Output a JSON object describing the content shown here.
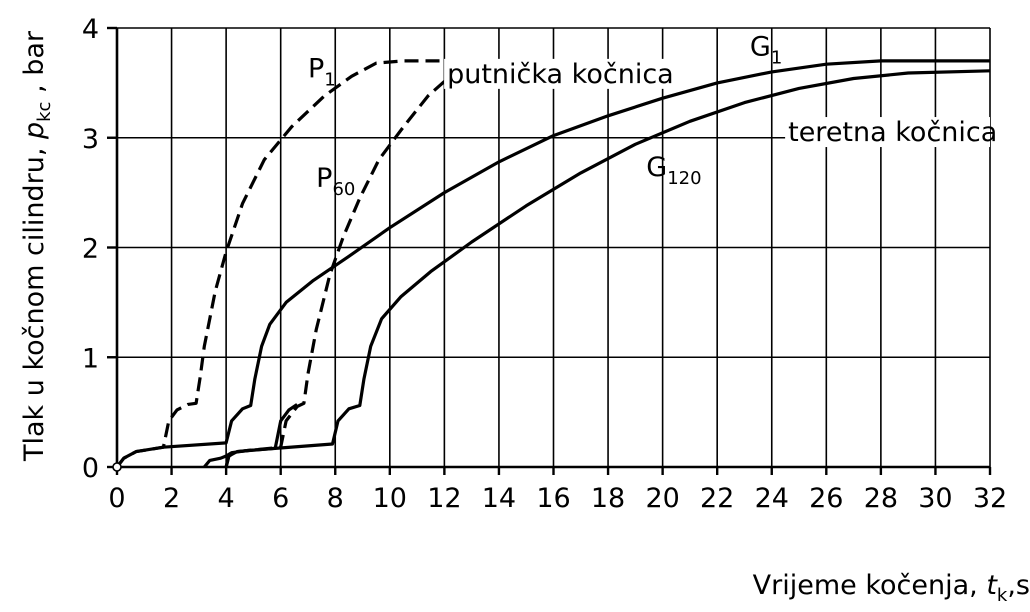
{
  "chart_data": {
    "type": "line",
    "title": "",
    "xlabel": {
      "text": "Vrijeme  kočenja, ",
      "sym": "t",
      "sub": "k",
      "tail": ",s"
    },
    "ylabel": {
      "text": "Tlak u kočnom cilindru, ",
      "sym": "p",
      "sub": "kc",
      "tail": " ,  bar"
    },
    "xlim": [
      0,
      32
    ],
    "ylim": [
      0,
      4
    ],
    "x_ticks": [
      0,
      2,
      4,
      6,
      8,
      10,
      12,
      14,
      16,
      18,
      20,
      22,
      24,
      26,
      28,
      30,
      32
    ],
    "y_ticks": [
      0,
      1,
      2,
      3,
      4
    ],
    "grid_x_step": 2,
    "grid": true,
    "series": [
      {
        "name": "P1",
        "label": "P",
        "label_sub": "1",
        "style": "dashed",
        "points": [
          [
            0,
            0
          ],
          [
            0.25,
            0.08
          ],
          [
            0.7,
            0.14
          ],
          [
            1.7,
            0.18
          ],
          [
            1.9,
            0.42
          ],
          [
            2.2,
            0.52
          ],
          [
            2.6,
            0.57
          ],
          [
            2.9,
            0.58
          ],
          [
            3.05,
            0.82
          ],
          [
            3.2,
            1.1
          ],
          [
            3.6,
            1.6
          ],
          [
            4.0,
            1.96
          ],
          [
            4.6,
            2.4
          ],
          [
            5.4,
            2.8
          ],
          [
            6.4,
            3.1
          ],
          [
            7.6,
            3.38
          ],
          [
            8.6,
            3.56
          ],
          [
            9.5,
            3.68
          ],
          [
            10.5,
            3.7
          ],
          [
            18.5,
            3.7
          ]
        ]
      },
      {
        "name": "P60",
        "label": "P",
        "label_sub": "60",
        "style": "dashed",
        "points": [
          [
            4,
            0
          ],
          [
            4.1,
            0.1
          ],
          [
            4.4,
            0.14
          ],
          [
            6.0,
            0.18
          ],
          [
            6.2,
            0.42
          ],
          [
            6.6,
            0.55
          ],
          [
            6.85,
            0.58
          ],
          [
            7.0,
            0.85
          ],
          [
            7.3,
            1.25
          ],
          [
            7.8,
            1.75
          ],
          [
            8.3,
            2.1
          ],
          [
            8.9,
            2.45
          ],
          [
            9.6,
            2.8
          ],
          [
            10.5,
            3.1
          ],
          [
            11.4,
            3.38
          ],
          [
            12.3,
            3.58
          ],
          [
            13.2,
            3.68
          ],
          [
            14.5,
            3.7
          ],
          [
            18.5,
            3.7
          ]
        ]
      },
      {
        "name": "G1",
        "label": "G",
        "label_sub": "1",
        "style": "solid",
        "points": [
          [
            1.7,
            0.18
          ],
          [
            4.0,
            0.22
          ],
          [
            4.2,
            0.42
          ],
          [
            4.6,
            0.53
          ],
          [
            4.9,
            0.56
          ],
          [
            5.05,
            0.8
          ],
          [
            5.3,
            1.1
          ],
          [
            5.6,
            1.3
          ],
          [
            6.2,
            1.5
          ],
          [
            7.2,
            1.7
          ],
          [
            8.5,
            1.92
          ],
          [
            10.0,
            2.18
          ],
          [
            12.0,
            2.5
          ],
          [
            14.0,
            2.78
          ],
          [
            16.0,
            3.02
          ],
          [
            18.0,
            3.2
          ],
          [
            20.0,
            3.36
          ],
          [
            22.0,
            3.5
          ],
          [
            24.0,
            3.6
          ],
          [
            26.0,
            3.67
          ],
          [
            28.0,
            3.7
          ],
          [
            32.0,
            3.7
          ]
        ]
      },
      {
        "name": "G120",
        "label": "G",
        "label_sub": "120",
        "style": "solid",
        "points": [
          [
            3.2,
            0
          ],
          [
            3.4,
            0.06
          ],
          [
            3.8,
            0.08
          ],
          [
            4.0,
            0.1
          ],
          [
            4.2,
            0.13
          ],
          [
            4.8,
            0.15
          ],
          [
            7.9,
            0.21
          ],
          [
            8.1,
            0.42
          ],
          [
            8.5,
            0.53
          ],
          [
            8.9,
            0.56
          ],
          [
            9.05,
            0.8
          ],
          [
            9.3,
            1.1
          ],
          [
            9.7,
            1.35
          ],
          [
            10.4,
            1.55
          ],
          [
            11.5,
            1.78
          ],
          [
            13.0,
            2.05
          ],
          [
            15.0,
            2.38
          ],
          [
            17.0,
            2.68
          ],
          [
            19.0,
            2.94
          ],
          [
            21.0,
            3.15
          ],
          [
            23.0,
            3.32
          ],
          [
            25.0,
            3.45
          ],
          [
            27.0,
            3.54
          ],
          [
            29.0,
            3.59
          ],
          [
            32.0,
            3.61
          ]
        ]
      },
      {
        "name": "G1-start",
        "style": "solid",
        "points": [
          [
            0,
            0
          ],
          [
            0.25,
            0.08
          ],
          [
            0.7,
            0.14
          ],
          [
            1.7,
            0.18
          ]
        ]
      },
      {
        "name": "G120-start",
        "style": "solid",
        "points": [
          [
            4,
            0
          ],
          [
            4.1,
            0.1
          ],
          [
            4.4,
            0.14
          ],
          [
            5.8,
            0.17
          ],
          [
            6.0,
            0.42
          ],
          [
            6.3,
            0.52
          ],
          [
            6.6,
            0.57
          ]
        ]
      }
    ],
    "annotations": [
      {
        "text": "putnička  kočnica",
        "x": 12.1,
        "y": 3.5
      },
      {
        "text": "teretna  kočnica",
        "x": 24.6,
        "y": 2.97
      }
    ],
    "curve_labels": [
      {
        "series": "P1",
        "x": 7.0,
        "y": 3.55
      },
      {
        "series": "P60",
        "x": 7.3,
        "y": 2.55
      },
      {
        "series": "G1",
        "x": 23.2,
        "y": 3.75
      },
      {
        "series": "G120",
        "x": 19.4,
        "y": 2.65
      }
    ]
  }
}
